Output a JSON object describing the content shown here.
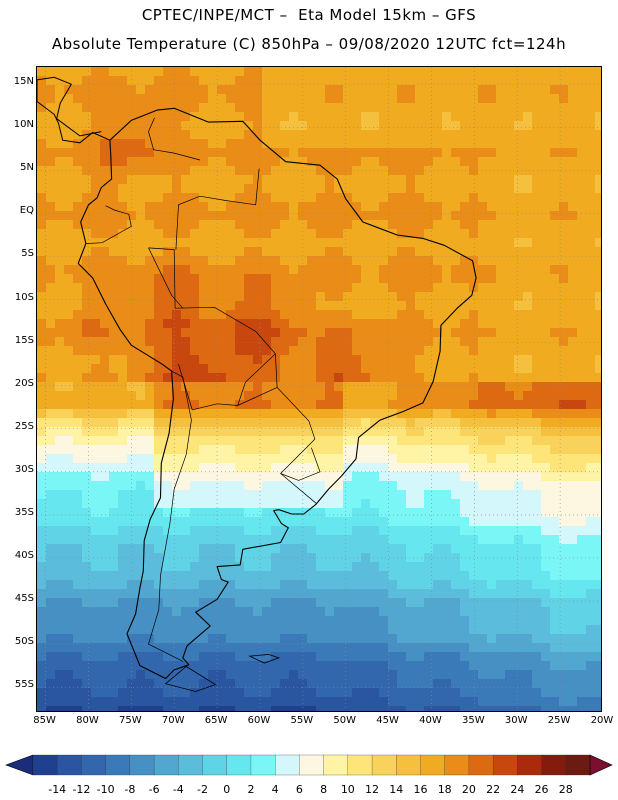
{
  "title": {
    "line1": "CPTEC/INPE/MCT –  Eta Model 15km – GFS",
    "line2": "Absolute Temperature (C) 850hPa – 09/08/2020 12UTC fct=124h"
  },
  "axes": {
    "lat_labels": [
      "15N",
      "10N",
      "5N",
      "EQ",
      "5S",
      "10S",
      "15S",
      "20S",
      "25S",
      "30S",
      "35S",
      "40S",
      "45S",
      "50S",
      "55S"
    ],
    "lon_labels": [
      "85W",
      "80W",
      "75W",
      "70W",
      "65W",
      "60W",
      "55W",
      "50W",
      "45W",
      "40W",
      "35W",
      "30W",
      "25W",
      "20W"
    ],
    "lat_range": [
      17,
      -58
    ],
    "lon_range": [
      -86,
      -20
    ],
    "grid": "dotted"
  },
  "colorbar": {
    "labels": [
      "-14",
      "-12",
      "-10",
      "-8",
      "-6",
      "-4",
      "-2",
      "0",
      "2",
      "4",
      "6",
      "8",
      "10",
      "12",
      "14",
      "16",
      "18",
      "20",
      "22",
      "24",
      "26",
      "28"
    ],
    "colors": [
      "#1f3f8f",
      "#2a55a0",
      "#3266ad",
      "#3a7ab9",
      "#4690c4",
      "#52a7d0",
      "#5cbcdc",
      "#61d3e6",
      "#66e7ef",
      "#7af6f6",
      "#d4f7fb",
      "#fdf7e2",
      "#fff4a6",
      "#fde57a",
      "#f9d25c",
      "#f5c03e",
      "#f1ab20",
      "#ea8c18",
      "#dd6a12",
      "#c8470e",
      "#a92b0b",
      "#841c0d",
      "#6b1b12"
    ],
    "low_arrow_color": "#1a2c7a",
    "high_arrow_color": "#7a0f30"
  },
  "map": {
    "bands": [
      {
        "lat": -22,
        "t": 19,
        "dlat": 3
      },
      {
        "lat": -27,
        "t": 9,
        "dlat": 4
      },
      {
        "lat": -33,
        "t": 4,
        "dlat": 4
      },
      {
        "lat": -40,
        "t": 0,
        "dlat": 5
      },
      {
        "lat": -46,
        "t": -4,
        "dlat": 5
      },
      {
        "lat": -52,
        "t": -8,
        "dlat": 5
      },
      {
        "lat": -57,
        "t": -12,
        "dlat": 5
      }
    ],
    "hot_spots": [
      {
        "lon": -61,
        "lat": -15,
        "t": 23
      },
      {
        "lon": -67,
        "lat": -20,
        "t": 24
      },
      {
        "lon": -75,
        "lat": 8,
        "t": 21
      },
      {
        "lon": -50,
        "lat": -19,
        "t": 22
      },
      {
        "lon": -80,
        "lat": -13,
        "t": 20
      },
      {
        "lon": -70,
        "lat": -12,
        "t": 22
      }
    ],
    "base_temp": 18
  }
}
